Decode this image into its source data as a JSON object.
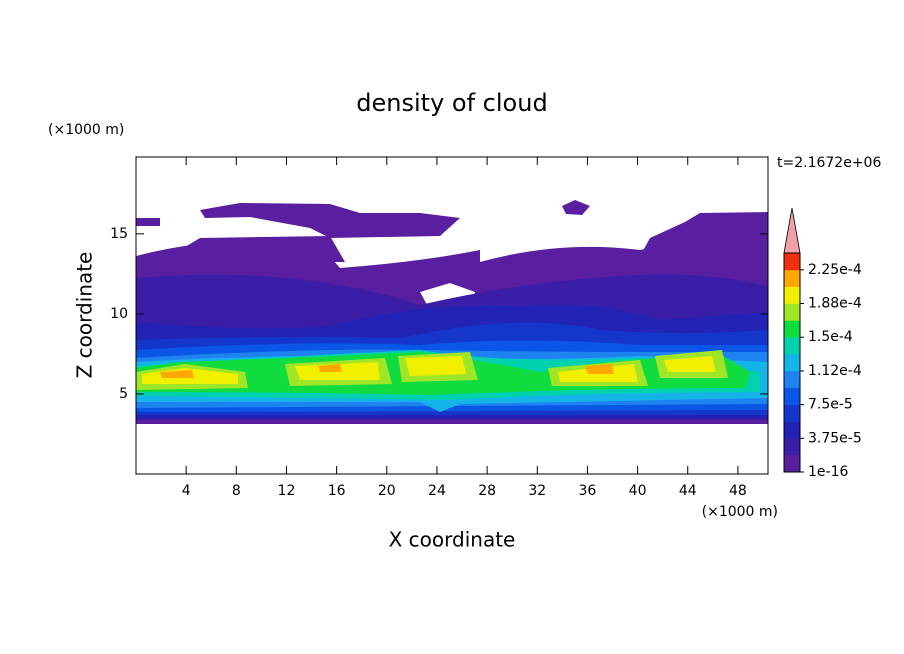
{
  "chart_data": {
    "type": "contour",
    "title": "density of cloud",
    "x_label": "X coordinate",
    "y_label": "Z coordinate",
    "x_unit": "(×1000 m)",
    "y_unit": "(×1000 m)",
    "annotation": "t=2.1672e+06",
    "xlim": [
      0,
      50.4
    ],
    "ylim": [
      0,
      19.8
    ],
    "xticks": [
      4,
      8,
      12,
      16,
      20,
      24,
      28,
      32,
      36,
      40,
      44,
      48
    ],
    "yticks": [
      5,
      10,
      15
    ],
    "colorbar": {
      "clim": [
        1e-16,
        0.00024375
      ],
      "ticks": [
        1e-16,
        {
          "value": 3.75e-05,
          "label": "3.75e-5"
        },
        {
          "value": 7.5e-05,
          "label": "7.5e-5"
        },
        {
          "value": 0.0001125,
          "label": "1.12e-4"
        },
        {
          "value": 0.00015,
          "label": "1.5e-4"
        },
        {
          "value": 0.0001875,
          "label": "1.88e-4"
        },
        {
          "value": 0.000225,
          "label": "2.25e-4"
        }
      ],
      "colors": [
        "#5a1fa0",
        "#3a1ea8",
        "#2222b4",
        "#1436cc",
        "#0a56e6",
        "#1e82f0",
        "#14b4e8",
        "#00d2b0",
        "#10dc40",
        "#a0e628",
        "#f0f000",
        "#ffa800",
        "#f03010"
      ],
      "extend_color": "#f4a0a8"
    }
  }
}
